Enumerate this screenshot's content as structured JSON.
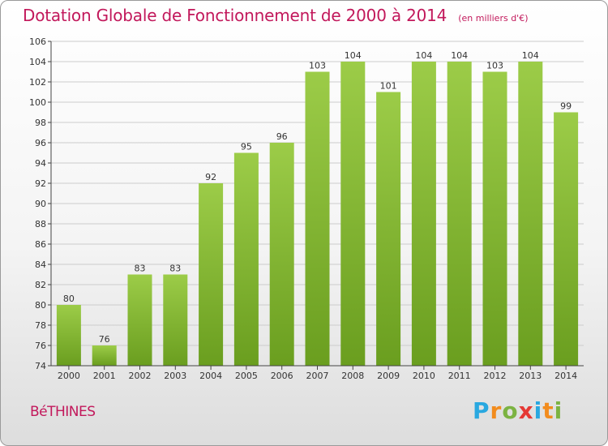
{
  "header": {
    "title": "Dotation Globale de Fonctionnement de 2000 à 2014",
    "unit": "(en milliers d'€)"
  },
  "footer": {
    "town": "BéTHINES",
    "logo_letters": [
      "P",
      "r",
      "o",
      "x",
      "i",
      "t",
      "i"
    ],
    "logo_colors": [
      "#29a8e0",
      "#f28c1e",
      "#7cb342",
      "#e53935",
      "#29a8e0",
      "#f28c1e",
      "#7cb342"
    ]
  },
  "colors": {
    "title": "#c2185b",
    "bar_light": "#9ccc48",
    "bar_dark": "#6a9e1f",
    "grid": "#cccccc",
    "axis": "#444444"
  },
  "chart_data": {
    "type": "bar",
    "title": "Dotation Globale de Fonctionnement de 2000 à 2014",
    "ylabel": "en milliers d'€",
    "xlabel": "",
    "categories": [
      "2000",
      "2001",
      "2002",
      "2003",
      "2004",
      "2005",
      "2006",
      "2007",
      "2008",
      "2009",
      "2010",
      "2011",
      "2012",
      "2013",
      "2014"
    ],
    "values": [
      80,
      76,
      83,
      83,
      92,
      95,
      96,
      103,
      104,
      101,
      104,
      104,
      103,
      104,
      99
    ],
    "ylim": [
      74,
      106
    ],
    "yticks": [
      74,
      76,
      78,
      80,
      82,
      84,
      86,
      88,
      90,
      92,
      94,
      96,
      98,
      100,
      102,
      104,
      106
    ],
    "grid": true,
    "data_labels": true
  }
}
